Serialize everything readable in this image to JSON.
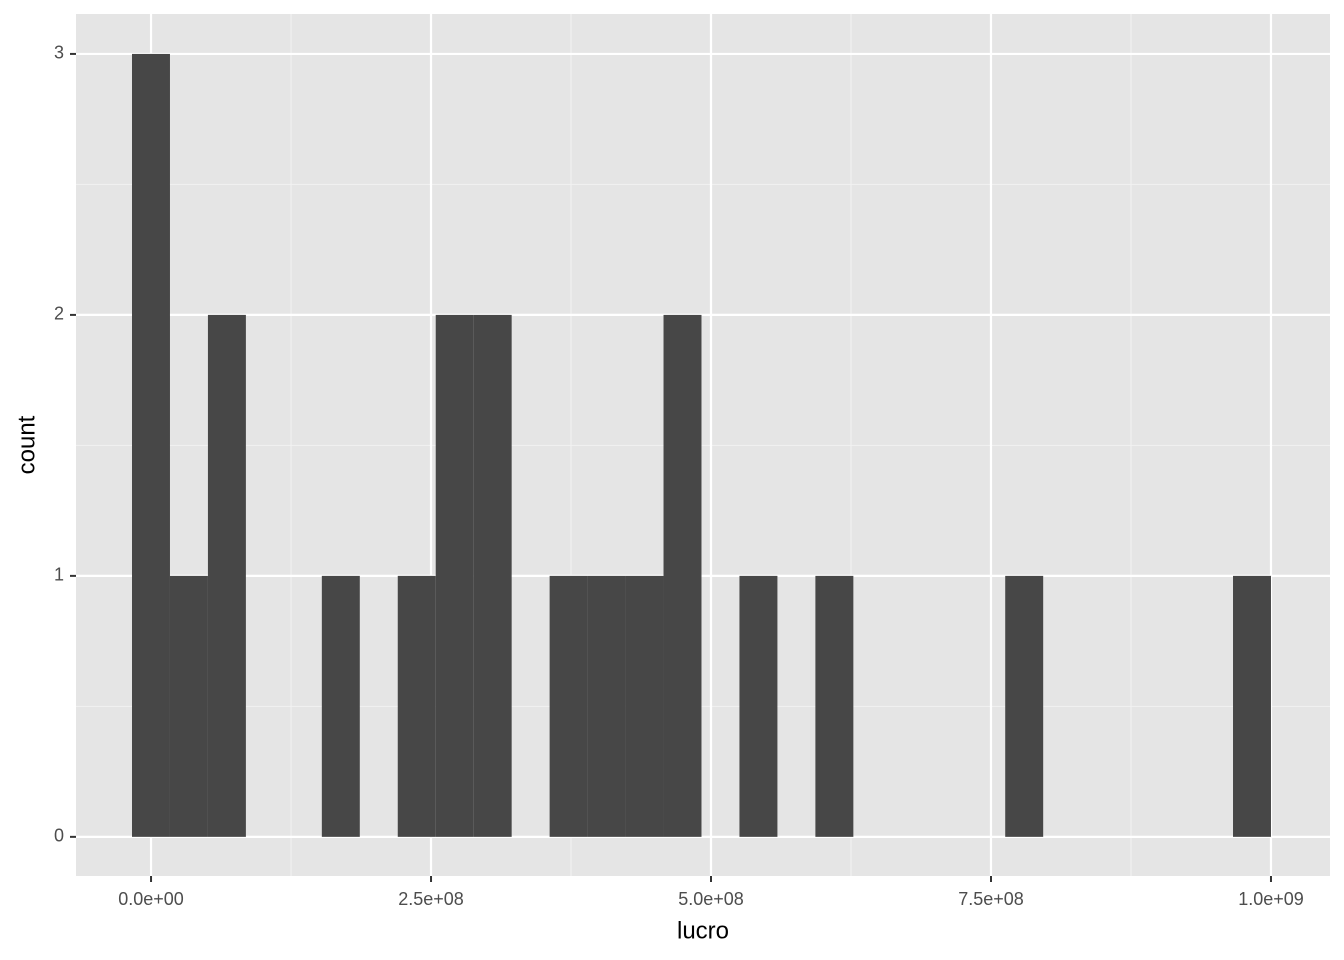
{
  "chart_data": {
    "type": "histogram",
    "x_label": "lucro",
    "y_label": "count",
    "bins": [
      -17000000,
      16900000,
      50800000,
      84700000,
      118600000,
      152500000,
      186400000,
      220300000,
      254200000,
      288100000,
      322000000,
      355900000,
      389800000,
      423700000,
      457600000,
      491500000,
      525400000,
      559300000,
      593200000,
      627100000,
      661000000,
      694900000,
      728800000,
      762700000,
      796600000,
      830500000,
      864400000,
      898300000,
      932200000,
      966100000,
      1000000000
    ],
    "counts": [
      3,
      1,
      2,
      0,
      0,
      1,
      0,
      1,
      2,
      2,
      0,
      1,
      1,
      1,
      2,
      0,
      1,
      0,
      1,
      0,
      0,
      0,
      0,
      1,
      0,
      0,
      0,
      0,
      0,
      1
    ],
    "color": "#474747",
    "xlim": [
      -67000000,
      1052700000
    ],
    "xticks": [
      {
        "value": 0,
        "label": "0.0e+00"
      },
      {
        "value": 250000000,
        "label": "2.5e+08"
      },
      {
        "value": 500000000,
        "label": "5.0e+08"
      },
      {
        "value": 750000000,
        "label": "7.5e+08"
      },
      {
        "value": 1000000000,
        "label": "1.0e+09"
      }
    ],
    "ylim": [
      -0.15,
      3.153
    ],
    "yticks": [
      0,
      1,
      2,
      3
    ],
    "grid": true
  }
}
